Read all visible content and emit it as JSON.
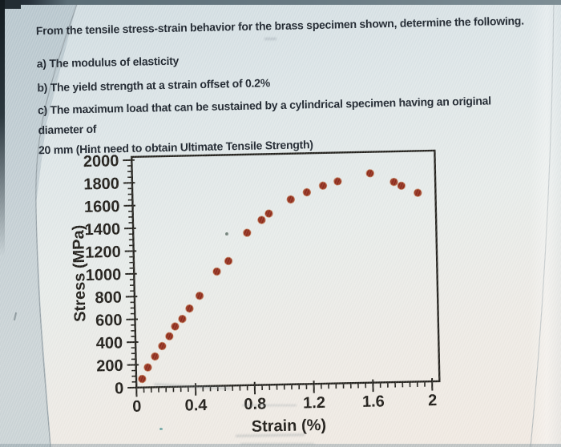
{
  "document": {
    "intro": "From the tensile stress-strain behavior for the brass specimen shown, determine the following.",
    "item_a": "a) The modulus of elasticity",
    "item_b": "b) The yield strength at a strain offset of 0.2%",
    "item_c_1": "c) The maximum load that can be sustained by a cylindrical specimen having an original diameter of",
    "item_c_2": "20 mm (Hint need to obtain Ultimate Tensile Strength)"
  },
  "chart_data": {
    "type": "scatter",
    "title": "",
    "xlabel": "Strain (%)",
    "ylabel": "Stress (MPa)",
    "xlim": [
      0,
      2.05
    ],
    "ylim": [
      0,
      2028
    ],
    "grid": false,
    "legend": null,
    "x_major_ticks": [
      0,
      0.4,
      0.8,
      1.2,
      1.6,
      2
    ],
    "x_tick_labels": [
      "0",
      "0.4",
      "0.8",
      "1.2",
      "1.6",
      "2"
    ],
    "x_minor_step": 0.05,
    "y_major_ticks": [
      0,
      200,
      400,
      600,
      800,
      1000,
      1200,
      1400,
      1600,
      1800,
      2000
    ],
    "y_tick_labels": [
      "0",
      "200",
      "400",
      "600",
      "800",
      "1000",
      "1200",
      "1400",
      "1600",
      "1800",
      "2000"
    ],
    "y_minor_step": 50,
    "marker": "circle",
    "marker_color": "#8c2513",
    "marker_edge_color": "#b65a2e",
    "axis_color": "#1c1a15",
    "points": [
      [
        0.04,
        75
      ],
      [
        0.08,
        175
      ],
      [
        0.13,
        270
      ],
      [
        0.18,
        360
      ],
      [
        0.23,
        445
      ],
      [
        0.27,
        530
      ],
      [
        0.32,
        595
      ],
      [
        0.37,
        685
      ],
      [
        0.44,
        795
      ],
      [
        0.56,
        1005
      ],
      [
        0.64,
        1095
      ],
      [
        0.77,
        1340
      ],
      [
        0.87,
        1450
      ],
      [
        0.92,
        1505
      ],
      [
        1.07,
        1625
      ],
      [
        1.18,
        1685
      ],
      [
        1.29,
        1740
      ],
      [
        1.39,
        1775
      ],
      [
        1.61,
        1840
      ],
      [
        1.77,
        1760
      ],
      [
        1.82,
        1725
      ],
      [
        1.93,
        1660
      ]
    ]
  }
}
